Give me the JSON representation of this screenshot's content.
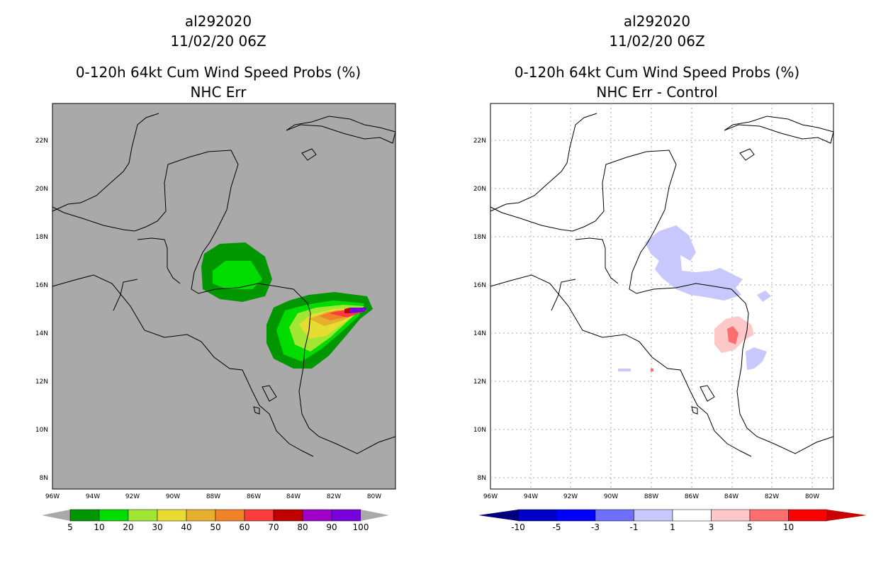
{
  "left": {
    "storm_id": "al292020",
    "datetime": "11/02/20 06Z",
    "title": "0-120h 64kt Cum Wind Speed Probs (%)",
    "subtitle": "NHC Err",
    "colorbar": {
      "labels": [
        "5",
        "10",
        "20",
        "30",
        "40",
        "50",
        "60",
        "70",
        "80",
        "90",
        "100"
      ],
      "colors": [
        "#009600",
        "#00dc00",
        "#a0e632",
        "#e6dc32",
        "#e6af2d",
        "#f08228",
        "#fa3c3c",
        "#c00000",
        "#a000c8",
        "#7800dc"
      ]
    }
  },
  "right": {
    "storm_id": "al292020",
    "datetime": "11/02/20 06Z",
    "title": "0-120h 64kt Cum Wind Speed Probs (%)",
    "subtitle": "NHC Err - Control",
    "colorbar": {
      "labels": [
        "-10",
        "-5",
        "-3",
        "-1",
        "1",
        "3",
        "5",
        "10"
      ],
      "colors": [
        "#0000c8",
        "#0000ff",
        "#6e6eff",
        "#c8c8ff",
        "#ffffff",
        "#ffc8c8",
        "#ff6e6e",
        "#ff0000",
        "#c80000"
      ]
    }
  },
  "axes": {
    "lon_labels": [
      "96W",
      "94W",
      "92W",
      "90W",
      "88W",
      "86W",
      "84W",
      "82W",
      "80W"
    ],
    "lat_labels": [
      "8N",
      "10N",
      "12N",
      "14N",
      "16N",
      "18N",
      "20N",
      "22N"
    ]
  }
}
